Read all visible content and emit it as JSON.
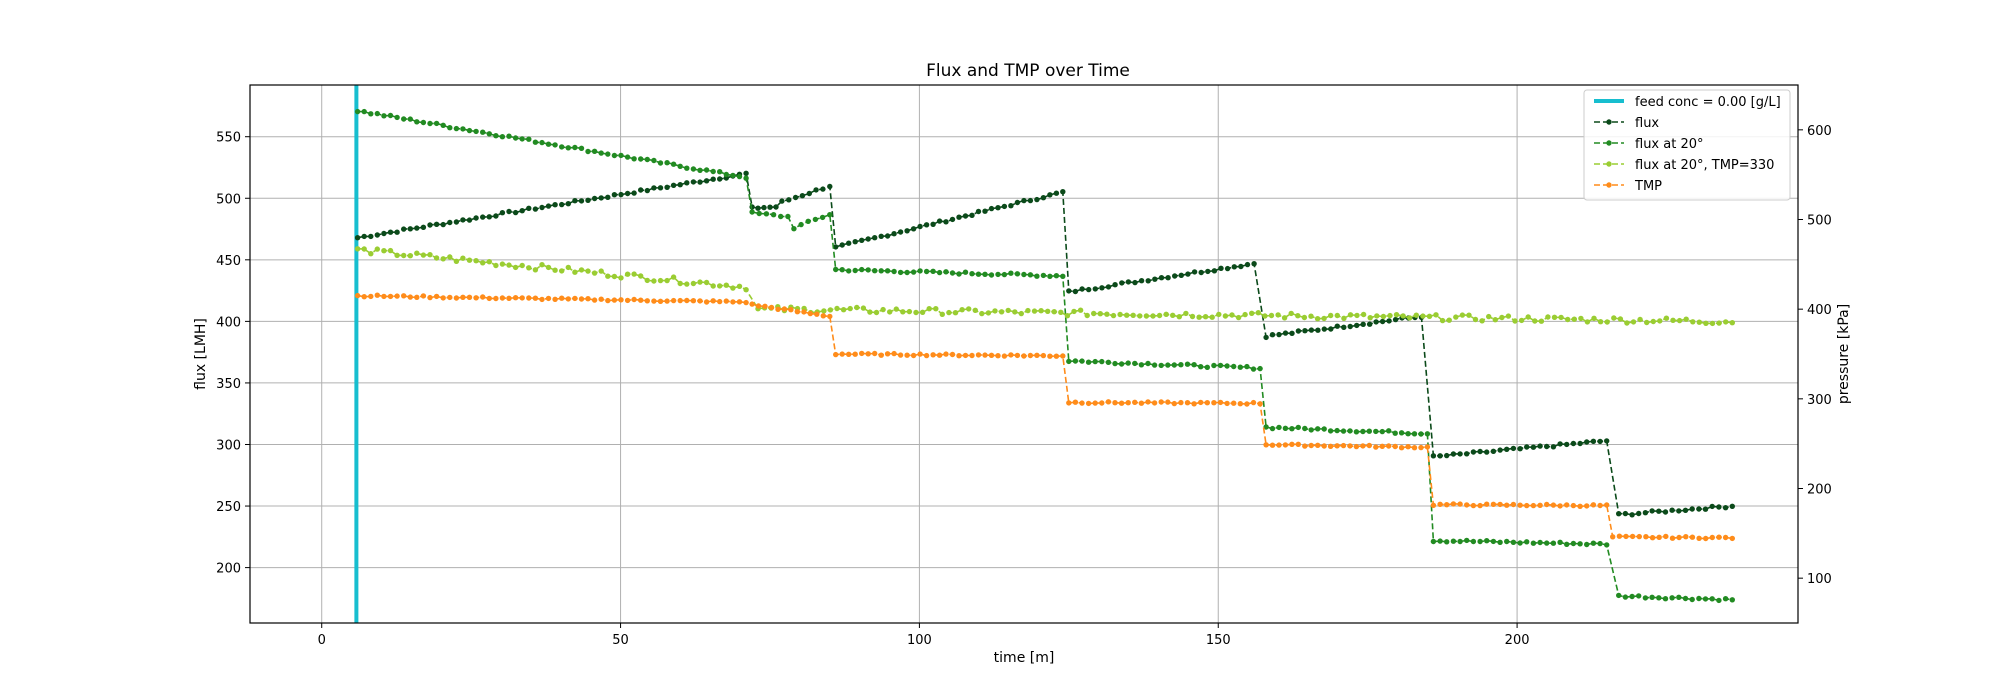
{
  "chart_data": {
    "type": "line",
    "title": "Flux and TMP over Time",
    "xlabel": "time [m]",
    "ylabel_left": "flux [LMH]",
    "ylabel_right": "pressure [kPa]",
    "xlim": [
      -12,
      247
    ],
    "ylim_left": [
      155,
      592
    ],
    "ylim_right": [
      50,
      650
    ],
    "x_ticks": [
      0,
      50,
      100,
      150,
      200
    ],
    "y_ticks_left": [
      200,
      250,
      300,
      350,
      400,
      450,
      500,
      550
    ],
    "y_ticks_right": [
      100,
      200,
      300,
      400,
      500,
      600
    ],
    "grid": true,
    "legend_position": "top-right",
    "vline": {
      "name": "feed conc = 0.00 [g/L]",
      "x": 5.8,
      "color": "#17becf"
    },
    "series": [
      {
        "name": "flux",
        "axis": "left",
        "color": "#0b4a1a",
        "segments": [
          {
            "start": 6,
            "end": 71,
            "y0": 468,
            "y1": 520
          },
          {
            "start": 72,
            "end": 76,
            "y0": 492,
            "y1": 493
          },
          {
            "start": 77,
            "end": 85,
            "y0": 497,
            "y1": 510
          },
          {
            "start": 86,
            "end": 124,
            "y0": 460,
            "y1": 505
          },
          {
            "start": 125,
            "end": 156,
            "y0": 424,
            "y1": 447
          },
          {
            "start": 158,
            "end": 184,
            "y0": 388,
            "y1": 404
          },
          {
            "start": 186,
            "end": 215,
            "y0": 290,
            "y1": 303
          },
          {
            "start": 217,
            "end": 236,
            "y0": 243,
            "y1": 250
          }
        ]
      },
      {
        "name": "flux at 20°",
        "axis": "left",
        "color": "#228b22",
        "segments": [
          {
            "start": 6,
            "end": 71,
            "y0": 571,
            "y1": 517
          },
          {
            "start": 72,
            "end": 78,
            "y0": 488,
            "y1": 485
          },
          {
            "start": 79,
            "end": 85,
            "y0": 476,
            "y1": 487
          },
          {
            "start": 86,
            "end": 124,
            "y0": 442,
            "y1": 437
          },
          {
            "start": 125,
            "end": 157,
            "y0": 368,
            "y1": 362
          },
          {
            "start": 158,
            "end": 185,
            "y0": 314,
            "y1": 309
          },
          {
            "start": 186,
            "end": 215,
            "y0": 222,
            "y1": 219
          },
          {
            "start": 217,
            "end": 236,
            "y0": 177,
            "y1": 174
          }
        ]
      },
      {
        "name": "flux at 20°, TMP=330",
        "axis": "left",
        "color": "#9acd32",
        "segments": [
          {
            "start": 6,
            "end": 71,
            "y0": 458,
            "y1": 428
          },
          {
            "start": 73,
            "end": 236,
            "y0": 410,
            "y1": 400
          }
        ]
      },
      {
        "name": "TMP",
        "axis": "right",
        "color": "#ff8c1a",
        "segments": [
          {
            "start": 6,
            "end": 71,
            "y0": 415,
            "y1": 408
          },
          {
            "start": 72,
            "end": 85,
            "y0": 405,
            "y1": 392
          },
          {
            "start": 86,
            "end": 124,
            "y0": 350,
            "y1": 348
          },
          {
            "start": 125,
            "end": 157,
            "y0": 296,
            "y1": 295
          },
          {
            "start": 158,
            "end": 185,
            "y0": 249,
            "y1": 246
          },
          {
            "start": 186,
            "end": 215,
            "y0": 182,
            "y1": 181
          },
          {
            "start": 216,
            "end": 236,
            "y0": 146,
            "y1": 145
          }
        ]
      }
    ]
  }
}
